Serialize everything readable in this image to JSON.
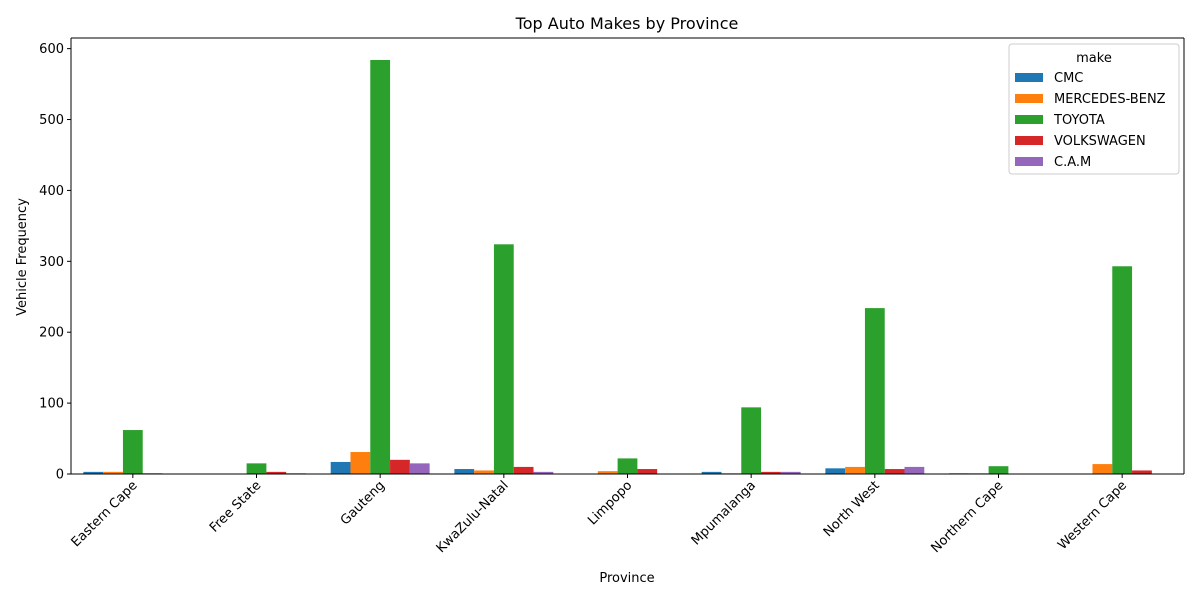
{
  "chart_data": {
    "type": "bar",
    "title": "Top Auto Makes by Province",
    "xlabel": "Province",
    "ylabel": "Vehicle Frequency",
    "ylim": [
      0,
      615
    ],
    "yticks": [
      0,
      100,
      200,
      300,
      400,
      500,
      600
    ],
    "grid": false,
    "legend_title": "make",
    "legend_position": "top-right",
    "categories": [
      "Eastern Cape",
      "Free State",
      "Gauteng",
      "KwaZulu-Natal",
      "Limpopo",
      "Mpumalanga",
      "North West",
      "Northern Cape",
      "Western Cape"
    ],
    "series": [
      {
        "name": "CMC",
        "color": "#1f77b4",
        "values": [
          3,
          0,
          17,
          7,
          0,
          3,
          8,
          1,
          0
        ]
      },
      {
        "name": "MERCEDES-BENZ",
        "color": "#ff7f0e",
        "values": [
          3,
          0,
          31,
          5,
          4,
          1,
          10,
          1,
          14
        ]
      },
      {
        "name": "TOYOTA",
        "color": "#2ca02c",
        "values": [
          62,
          15,
          584,
          324,
          22,
          94,
          234,
          11,
          293
        ]
      },
      {
        "name": "VOLKSWAGEN",
        "color": "#d62728",
        "values": [
          1,
          3,
          20,
          10,
          7,
          3,
          7,
          0,
          5
        ]
      },
      {
        "name": "C.A.M",
        "color": "#9467bd",
        "values": [
          0,
          1,
          15,
          3,
          0,
          3,
          10,
          0,
          0
        ]
      }
    ]
  }
}
